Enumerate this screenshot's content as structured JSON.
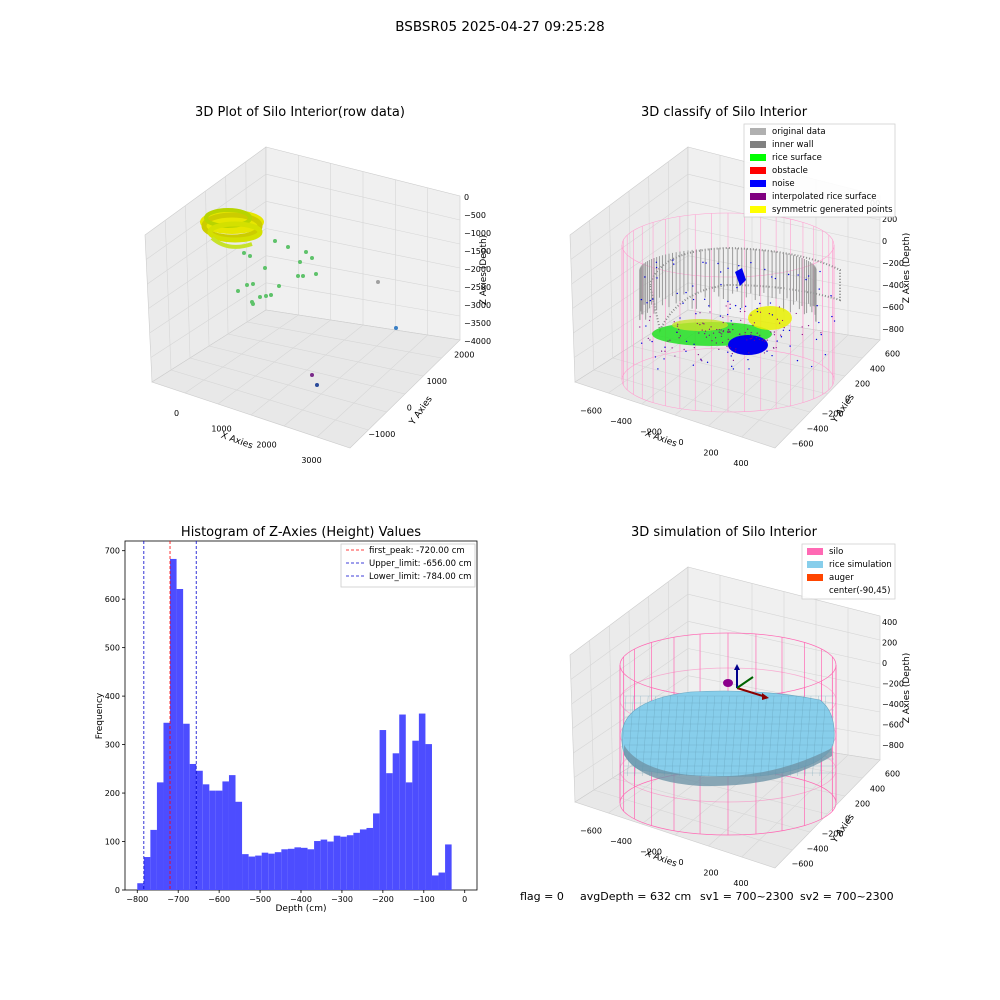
{
  "figure_title": "BSBSR05 2025-04-27 09:25:28",
  "footer": {
    "flag": "flag = 0",
    "avg_depth": "avgDepth = 632 cm",
    "sv1": "sv1 = 700~2300",
    "sv2": "sv2 = 700~2300"
  },
  "colors": {
    "histogram_bar": "#4d4dff",
    "first_peak_line": "#ff0000",
    "limit_line": "#0000cc",
    "silo": "#ff69b4",
    "rice": "#87ceeb",
    "auger": "#ff4500"
  },
  "chart_data": [
    {
      "type": "scatter",
      "projection": "3d",
      "title": "3D Plot of Silo Interior(row data)",
      "xlabel": "X Axies",
      "ylabel": "Y Axies",
      "zlabel": "Z Axies (Depth)",
      "x_ticks": [
        "0",
        "1000",
        "2000",
        "3000"
      ],
      "y_ticks": [
        "−1000",
        "0",
        "1000",
        "2000"
      ],
      "z_ticks": [
        "0",
        "−500",
        "−1000",
        "−1500",
        "−2000",
        "−2500",
        "−3000",
        "−3500",
        "−4000"
      ],
      "grid": true
    },
    {
      "type": "scatter",
      "projection": "3d",
      "title": "3D classify of Silo Interior",
      "xlabel": "X Axies",
      "ylabel": "Y Axies",
      "zlabel": "Z Axies (Depth)",
      "x_ticks": [
        "−600",
        "−400",
        "−200",
        "0",
        "200",
        "400"
      ],
      "y_ticks": [
        "−600",
        "−400",
        "−200",
        "0",
        "200",
        "400",
        "600"
      ],
      "z_ticks": [
        "200",
        "0",
        "−200",
        "−400",
        "−600",
        "−800"
      ],
      "z_tick_partial": "00",
      "legend_loc": "upper right",
      "legend": [
        {
          "label": "original data",
          "color": "#b0b0b0"
        },
        {
          "label": "inner wall",
          "color": "#808080"
        },
        {
          "label": "rice surface",
          "color": "#00ff00"
        },
        {
          "label": "obstacle",
          "color": "#ff0000"
        },
        {
          "label": "noise",
          "color": "#0000ff"
        },
        {
          "label": "interpolated rice surface",
          "color": "#800080"
        },
        {
          "label": "symmetric generated points",
          "color": "#ffff00"
        }
      ],
      "grid": true
    },
    {
      "type": "bar",
      "title": "Histogram of Z-Axies (Height) Values",
      "xlabel": "Depth (cm)",
      "ylabel": "Frequency",
      "xlim": [
        -830,
        30
      ],
      "ylim": [
        0,
        720
      ],
      "x_ticks": [
        -800,
        -700,
        -600,
        -500,
        -400,
        -300,
        -200,
        -100,
        0
      ],
      "y_ticks": [
        0,
        100,
        200,
        300,
        400,
        500,
        600,
        700
      ],
      "bin_start": -800,
      "bin_width": 16,
      "values": [
        14,
        68,
        124,
        222,
        345,
        683,
        621,
        343,
        260,
        246,
        218,
        205,
        205,
        224,
        237,
        182,
        74,
        69,
        71,
        77,
        75,
        78,
        84,
        85,
        88,
        87,
        84,
        101,
        104,
        100,
        112,
        110,
        113,
        118,
        125,
        128,
        158,
        330,
        241,
        282,
        362,
        222,
        308,
        364,
        301,
        30,
        36,
        94
      ],
      "lines": [
        {
          "label": "first_peak: -720.00 cm",
          "x": -720,
          "color": "#ff0000"
        },
        {
          "label": "Upper_limit: -656.00 cm",
          "x": -656,
          "color": "#0000cc"
        },
        {
          "label": "Lower_limit: -784.00 cm",
          "x": -784,
          "color": "#0000cc"
        }
      ],
      "legend_loc": "upper right",
      "grid": false
    },
    {
      "type": "surface",
      "projection": "3d",
      "title": "3D simulation of Silo Interior",
      "xlabel": "X Axies",
      "ylabel": "Y Axies",
      "zlabel": "Z Axies (Depth)",
      "x_ticks": [
        "−600",
        "−400",
        "−200",
        "0",
        "200",
        "400"
      ],
      "y_ticks": [
        "−600",
        "−400",
        "−200",
        "0",
        "200",
        "400",
        "600"
      ],
      "z_ticks": [
        "400",
        "200",
        "0",
        "−200",
        "−400",
        "−600",
        "−800"
      ],
      "legend_loc": "upper right",
      "legend": [
        {
          "label": "silo",
          "color": "#ff69b4"
        },
        {
          "label": "rice simulation",
          "color": "#87ceeb"
        },
        {
          "label": "auger",
          "color": "#ff4500"
        },
        {
          "label": "center(-90,45)",
          "color": ""
        }
      ],
      "grid": true
    }
  ]
}
